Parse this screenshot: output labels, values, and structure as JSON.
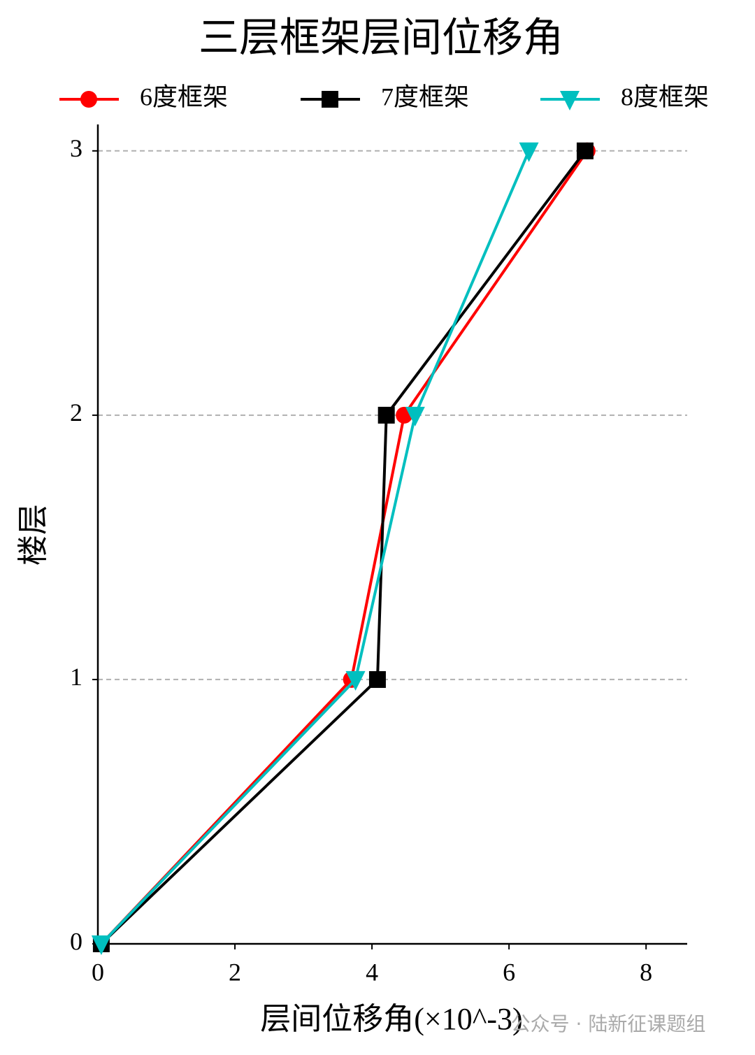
{
  "chart_data": {
    "type": "line",
    "orientation": "horizontal",
    "title": "三层框架层间位移角",
    "x_label": "层间位移角(×10^-3)",
    "y_label": "楼层",
    "watermark": "公众号 · 陆新征课题组",
    "y": [
      0,
      1,
      2,
      3
    ],
    "series": [
      {
        "name": "6度框架",
        "color": "#ff0000",
        "marker": "circle",
        "values": [
          0.05,
          3.7,
          4.47,
          7.14
        ]
      },
      {
        "name": "7度框架",
        "color": "#000000",
        "marker": "square",
        "values": [
          0.05,
          4.08,
          4.21,
          7.11
        ]
      },
      {
        "name": "8度框架",
        "color": "#00bfbf",
        "marker": "triangle-down",
        "values": [
          0.05,
          3.76,
          4.63,
          6.29
        ]
      }
    ],
    "xlim": [
      0,
      8.6
    ],
    "xticks": [
      0,
      2,
      4,
      6,
      8
    ],
    "ylim": [
      0,
      3.1
    ],
    "yticks": [
      0,
      1,
      2,
      3
    ],
    "grid": "y",
    "legend": "top"
  }
}
